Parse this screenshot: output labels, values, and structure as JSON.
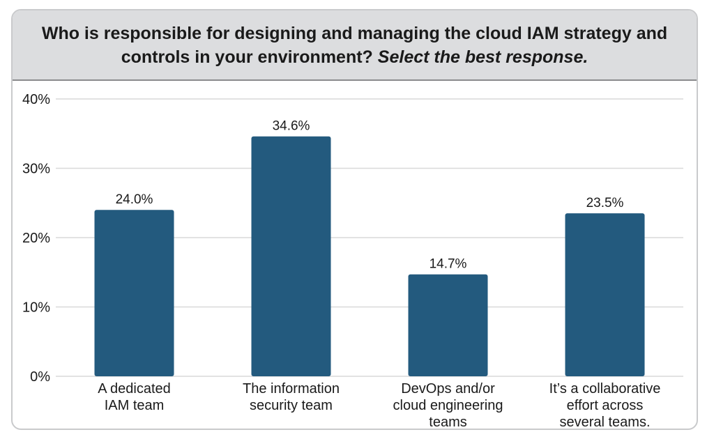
{
  "header": {
    "title_line1": "Who is responsible for designing and managing the cloud IAM strategy and",
    "title_line2": "controls in your environment?",
    "subtitle": "Select the best response."
  },
  "chart_data": {
    "type": "bar",
    "title": "Who is responsible for designing and managing the cloud IAM strategy and controls in your environment? Select the best response.",
    "categories": [
      [
        "A dedicated",
        "IAM team"
      ],
      [
        "The information",
        "security team"
      ],
      [
        "DevOps and/or",
        "cloud engineering",
        "teams"
      ],
      [
        "It’s a collaborative",
        "effort across",
        "several teams."
      ]
    ],
    "values": [
      24.0,
      34.6,
      14.7,
      23.5
    ],
    "data_labels": [
      "24.0%",
      "34.6%",
      "14.7%",
      "23.5%"
    ],
    "ylim": [
      0,
      40
    ],
    "yticks": [
      0,
      10,
      20,
      30,
      40
    ],
    "ytick_labels": [
      "0%",
      "10%",
      "20%",
      "30%",
      "40%"
    ],
    "xlabel": "",
    "ylabel": "",
    "grid": true,
    "bar_color": "#235a7e",
    "grid_color": "#d9d9d9"
  }
}
